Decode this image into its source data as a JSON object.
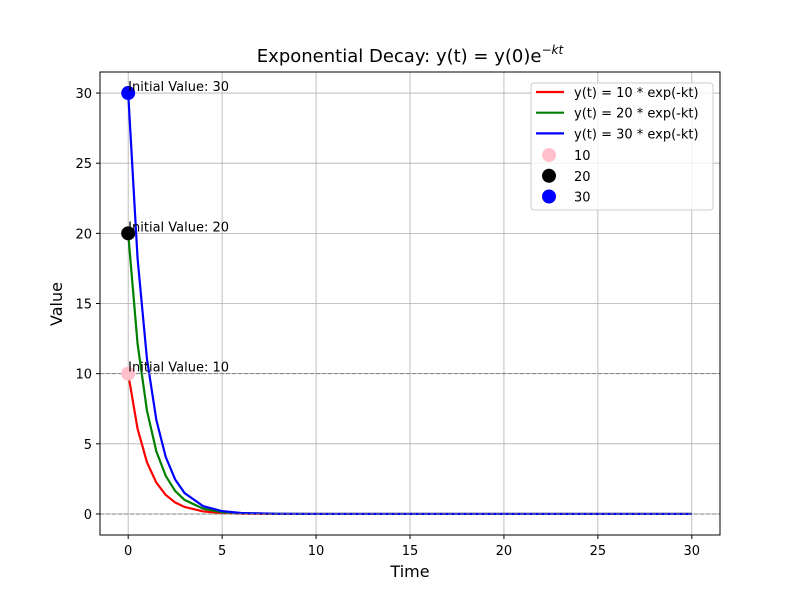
{
  "chart_data": {
    "type": "line",
    "title": {
      "text": "Exponential Decay: y(t) = y(0)e",
      "superscript": "−kt"
    },
    "x_label": "Time",
    "y_label": "Value",
    "xlim": [
      -1.5,
      31.5
    ],
    "ylim": [
      -1.5,
      31.5
    ],
    "xticks": [
      0,
      5,
      10,
      15,
      20,
      25,
      30
    ],
    "yticks": [
      0,
      5,
      10,
      15,
      20,
      25,
      30
    ],
    "grid": true,
    "legend": "upper right",
    "x": [
      0,
      0.5,
      1,
      1.5,
      2,
      2.5,
      3,
      4,
      5,
      6,
      8,
      10,
      15,
      20,
      25,
      30
    ],
    "series": [
      {
        "name": "y(t) = 10 * exp(-kt)",
        "color": "#ff0000",
        "values": [
          10,
          6.07,
          3.68,
          2.23,
          1.35,
          0.82,
          0.5,
          0.18,
          0.07,
          0.02,
          0,
          0,
          0,
          0,
          0,
          0
        ]
      },
      {
        "name": "y(t) = 20 * exp(-kt)",
        "color": "#008000",
        "values": [
          20,
          12.13,
          7.36,
          4.46,
          2.71,
          1.64,
          1.0,
          0.37,
          0.13,
          0.05,
          0.01,
          0,
          0,
          0,
          0,
          0
        ]
      },
      {
        "name": "y(t) = 30 * exp(-kt)",
        "color": "#0000ff",
        "values": [
          30,
          18.2,
          11.04,
          6.69,
          4.06,
          2.46,
          1.49,
          0.55,
          0.2,
          0.07,
          0.01,
          0,
          0,
          0,
          0,
          0
        ]
      }
    ],
    "points": [
      {
        "name": "10",
        "color": "#ffc0cb",
        "x": 0,
        "y": 10,
        "annotation": "Initial Value: 10"
      },
      {
        "name": "20",
        "color": "#000000",
        "x": 0,
        "y": 20,
        "annotation": "Initial Value: 20"
      },
      {
        "name": "30",
        "color": "#0000ff",
        "x": 0,
        "y": 30,
        "annotation": "Initial Value: 30"
      }
    ],
    "annotation_color": "#ff0000",
    "hlines": [
      0,
      10
    ],
    "hline_color": "#808080"
  }
}
